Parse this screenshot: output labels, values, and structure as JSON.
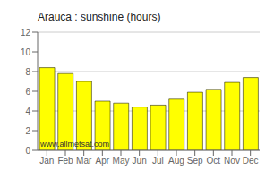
{
  "chart_data": {
    "type": "bar",
    "title": "Arauca : sunshine (hours)",
    "categories": [
      "Jan",
      "Feb",
      "Mar",
      "Apr",
      "May",
      "Jun",
      "Jul",
      "Aug",
      "Sep",
      "Oct",
      "Nov",
      "Dec"
    ],
    "values": [
      8.4,
      7.8,
      7.0,
      5.0,
      4.8,
      4.4,
      4.6,
      5.2,
      5.9,
      6.2,
      6.9,
      7.4
    ],
    "color": "#ffff00",
    "ylim": [
      0,
      12
    ],
    "yticks": [
      0,
      2,
      4,
      6,
      8,
      10,
      12
    ],
    "grid": true,
    "annotations": [
      "www.allmetsat.com"
    ]
  }
}
